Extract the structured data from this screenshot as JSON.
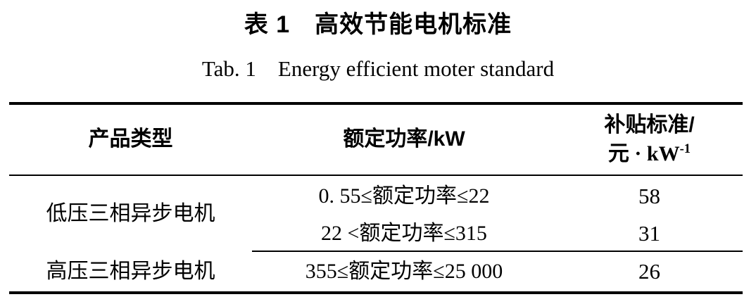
{
  "page": {
    "title_zh": "表 1　高效节能电机标准",
    "title_en": "Tab. 1　Energy efficient moter standard"
  },
  "table": {
    "header": {
      "product_type": "产品类型",
      "rated_power": "额定功率/kW",
      "subsidy_line1": "补贴标准/",
      "subsidy_line2_base": "元 · kW",
      "subsidy_line2_sup": "-1"
    },
    "rows": [
      {
        "product_type": "低压三相异步电机",
        "power_range": "0. 55≤额定功率≤22",
        "subsidy": "58"
      },
      {
        "power_range": "22 <额定功率≤315",
        "subsidy": "31"
      },
      {
        "product_type": "高压三相异步电机",
        "power_range": "355≤额定功率≤25 000",
        "subsidy": "26"
      }
    ]
  }
}
